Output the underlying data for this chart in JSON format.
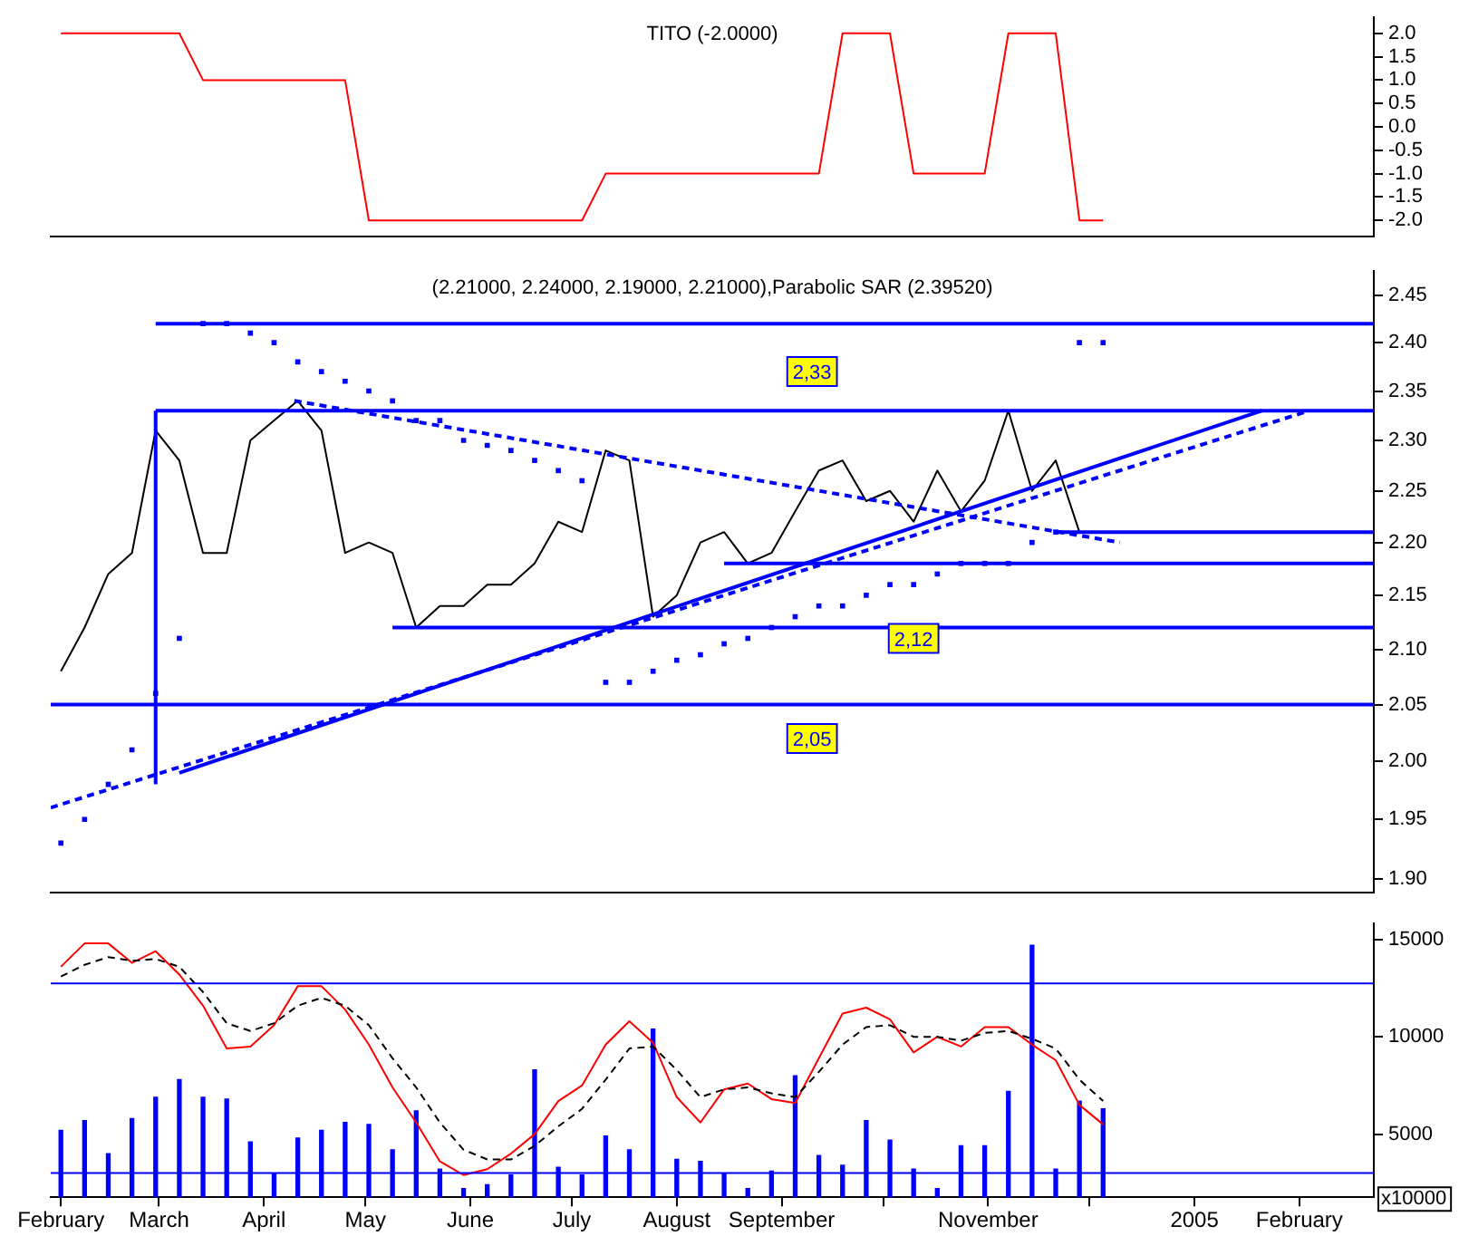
{
  "chart_data": [
    {
      "type": "line",
      "title": "TITO (-2.0000)",
      "x": [
        "2004-02-01",
        "2004-02-08",
        "2004-02-15",
        "2004-02-22",
        "2004-02-29",
        "2004-03-07",
        "2004-03-14",
        "2004-03-21",
        "2004-03-28",
        "2004-04-04",
        "2004-04-11",
        "2004-04-18",
        "2004-04-25",
        "2004-05-02",
        "2004-05-09",
        "2004-05-16",
        "2004-05-23",
        "2004-05-30",
        "2004-06-06",
        "2004-06-13",
        "2004-06-20",
        "2004-06-27",
        "2004-07-04",
        "2004-07-11",
        "2004-07-18",
        "2004-07-25",
        "2004-08-01",
        "2004-08-08",
        "2004-08-15",
        "2004-08-22",
        "2004-08-29",
        "2004-09-05",
        "2004-09-12",
        "2004-09-19",
        "2004-09-26",
        "2004-10-03",
        "2004-10-10",
        "2004-10-17",
        "2004-10-24",
        "2004-10-31",
        "2004-11-07",
        "2004-11-14",
        "2004-11-21",
        "2004-11-28",
        "2004-12-05"
      ],
      "series": [
        {
          "color": "#ff0000",
          "values": [
            2,
            2,
            2,
            2,
            2,
            2,
            1,
            1,
            1,
            1,
            1,
            1,
            1,
            -2,
            -2,
            -2,
            -2,
            -2,
            -2,
            -2,
            -2,
            -2,
            -2,
            -1,
            -1,
            -1,
            -1,
            -1,
            -1,
            -1,
            -1,
            -1,
            -1,
            2,
            2,
            2,
            -1,
            -1,
            -1,
            -1,
            2,
            2,
            2,
            -2,
            -2
          ]
        }
      ],
      "xlim": [
        "2004-01-29",
        "2005-02-23"
      ],
      "ylim": [
        -2.34,
        2.34
      ],
      "yticks": [
        {
          "value": 2,
          "label": "2.0"
        },
        {
          "value": 1.5,
          "label": "1.5"
        },
        {
          "value": 1,
          "label": "1.0"
        },
        {
          "value": 0.5,
          "label": "0.5"
        },
        {
          "value": 0,
          "label": "0.0"
        },
        {
          "value": -0.5,
          "label": "-0.5"
        },
        {
          "value": -1,
          "label": "-1.0"
        },
        {
          "value": -1.5,
          "label": "-1.5"
        },
        {
          "value": -2,
          "label": "-2.0"
        }
      ],
      "tick_labels": "y",
      "marker": "none"
    },
    {
      "type": "line",
      "title": "(2.21000, 2.24000, 2.19000, 2.21000),Parabolic SAR (2.39520)",
      "x": [
        "2004-02-01",
        "2004-02-08",
        "2004-02-15",
        "2004-02-22",
        "2004-02-29",
        "2004-03-07",
        "2004-03-14",
        "2004-03-21",
        "2004-03-28",
        "2004-04-04",
        "2004-04-11",
        "2004-04-18",
        "2004-04-25",
        "2004-05-02",
        "2004-05-09",
        "2004-05-16",
        "2004-05-23",
        "2004-05-30",
        "2004-06-06",
        "2004-06-13",
        "2004-06-20",
        "2004-06-27",
        "2004-07-04",
        "2004-07-11",
        "2004-07-18",
        "2004-07-25",
        "2004-08-01",
        "2004-08-08",
        "2004-08-15",
        "2004-08-22",
        "2004-08-29",
        "2004-09-05",
        "2004-09-12",
        "2004-09-19",
        "2004-09-26",
        "2004-10-03",
        "2004-10-10",
        "2004-10-17",
        "2004-10-24",
        "2004-10-31",
        "2004-11-07",
        "2004-11-14",
        "2004-11-21",
        "2004-11-28",
        "2004-12-05"
      ],
      "series": [
        {
          "color": "#000000",
          "values": [
            2.08,
            2.12,
            2.17,
            2.19,
            2.31,
            2.28,
            2.19,
            2.19,
            2.3,
            2.32,
            2.34,
            2.31,
            2.19,
            2.2,
            2.19,
            2.12,
            2.14,
            2.14,
            2.16,
            2.16,
            2.18,
            2.22,
            2.21,
            2.29,
            2.28,
            2.13,
            2.15,
            2.2,
            2.21,
            2.18,
            2.19,
            2.23,
            2.27,
            2.28,
            2.24,
            2.25,
            2.22,
            2.27,
            2.23,
            2.26,
            2.33,
            2.25,
            2.28,
            2.21,
            null
          ]
        },
        {
          "type": "scatter",
          "marker": "square",
          "color": "#0000ff",
          "values": [
            1.93,
            1.95,
            1.98,
            2.01,
            2.06,
            2.11,
            2.42,
            2.42,
            2.41,
            2.4,
            2.38,
            2.37,
            2.36,
            2.35,
            2.34,
            2.32,
            2.32,
            2.3,
            2.295,
            2.29,
            2.28,
            2.27,
            2.26,
            2.07,
            2.07,
            2.08,
            2.09,
            2.095,
            2.105,
            2.11,
            2.12,
            2.13,
            2.14,
            2.14,
            2.15,
            2.16,
            2.16,
            2.17,
            2.18,
            2.18,
            2.18,
            2.2,
            2.21,
            2.4,
            2.4
          ]
        },
        {
          "color": "#0000ff",
          "x": [
            "2004-02-29",
            "2005-02-23"
          ],
          "values": [
            2.42,
            2.42
          ]
        },
        {
          "color": "#0000ff",
          "x": [
            "2004-02-29",
            "2005-02-23"
          ],
          "values": [
            2.33,
            2.33
          ]
        },
        {
          "color": "#0000ff",
          "x": [
            "2004-01-29",
            "2005-02-23"
          ],
          "values": [
            2.05,
            2.05
          ]
        },
        {
          "color": "#0000ff",
          "x": [
            "2004-05-09",
            "2005-02-23"
          ],
          "values": [
            2.12,
            2.12
          ]
        },
        {
          "color": "#0000ff",
          "x": [
            "2004-08-15",
            "2005-02-23"
          ],
          "values": [
            2.18,
            2.18
          ]
        },
        {
          "color": "#0000ff",
          "x": [
            "2004-11-21",
            "2005-02-23"
          ],
          "values": [
            2.21,
            2.21
          ]
        },
        {
          "color": "#0000ff",
          "x": [
            "2004-02-29",
            "2004-02-29"
          ],
          "values": [
            1.98,
            2.33
          ]
        },
        {
          "color": "#0000ff",
          "x": [
            "2004-03-07",
            "2005-01-21"
          ],
          "values": [
            1.99,
            2.33
          ]
        },
        {
          "color": "#0000ff",
          "line_style": "dashed",
          "x": [
            "2004-01-29",
            "2005-02-04"
          ],
          "values": [
            1.96,
            2.33
          ]
        },
        {
          "color": "#0000ff",
          "line_style": "dashed",
          "x": [
            "2004-04-10",
            "2004-12-10"
          ],
          "values": [
            2.34,
            2.2
          ]
        }
      ],
      "annotations": [
        {
          "text": "2,33",
          "x": "2004-09-10",
          "y": 2.37
        },
        {
          "text": "2,12",
          "x": "2004-10-10",
          "y": 2.11
        },
        {
          "text": "2,05",
          "x": "2004-09-10",
          "y": 2.02
        }
      ],
      "xlim": [
        "2004-01-29",
        "2005-02-23"
      ],
      "ylim": [
        1.889,
        2.476
      ],
      "log": true,
      "yticks": [
        {
          "value": 1.9,
          "label": "1.90"
        },
        {
          "value": 1.95,
          "label": "1.95"
        },
        {
          "value": 2,
          "label": "2.00"
        },
        {
          "value": 2.05,
          "label": "2.05"
        },
        {
          "value": 2.1,
          "label": "2.10"
        },
        {
          "value": 2.15,
          "label": "2.15"
        },
        {
          "value": 2.2,
          "label": "2.20"
        },
        {
          "value": 2.25,
          "label": "2.25"
        },
        {
          "value": 2.3,
          "label": "2.30"
        },
        {
          "value": 2.35,
          "label": "2.35"
        },
        {
          "value": 2.4,
          "label": "2.40"
        },
        {
          "value": 2.45,
          "label": "2.45"
        }
      ],
      "tick_labels": "y",
      "marker": "none"
    },
    {
      "type": "bar",
      "x": [
        "2004-02-01",
        "2004-02-08",
        "2004-02-15",
        "2004-02-22",
        "2004-02-29",
        "2004-03-07",
        "2004-03-14",
        "2004-03-21",
        "2004-03-28",
        "2004-04-04",
        "2004-04-11",
        "2004-04-18",
        "2004-04-25",
        "2004-05-02",
        "2004-05-09",
        "2004-05-16",
        "2004-05-23",
        "2004-05-30",
        "2004-06-06",
        "2004-06-13",
        "2004-06-20",
        "2004-06-27",
        "2004-07-04",
        "2004-07-11",
        "2004-07-18",
        "2004-07-25",
        "2004-08-01",
        "2004-08-08",
        "2004-08-15",
        "2004-08-22",
        "2004-08-29",
        "2004-09-05",
        "2004-09-12",
        "2004-09-19",
        "2004-09-26",
        "2004-10-03",
        "2004-10-10",
        "2004-10-17",
        "2004-10-24",
        "2004-10-31",
        "2004-11-07",
        "2004-11-14",
        "2004-11-21",
        "2004-11-28",
        "2004-12-05"
      ],
      "series": [
        {
          "color": "#0000ff",
          "values": [
            5200,
            5700,
            4000,
            5800,
            6900,
            7800,
            6900,
            6800,
            4600,
            3000,
            4800,
            5200,
            5600,
            5500,
            4200,
            6200,
            3200,
            2200,
            2400,
            2900,
            8300,
            3300,
            2900,
            4900,
            4200,
            10400,
            3700,
            3600,
            3000,
            2200,
            3100,
            8000,
            3900,
            3400,
            5700,
            4700,
            3200,
            2200,
            4400,
            4400,
            7200,
            14700,
            3200,
            6700,
            6300
          ]
        },
        {
          "type": "line",
          "color": "#ff0000",
          "values": [
            13600,
            14800,
            14800,
            13800,
            14400,
            13200,
            11600,
            9400,
            9500,
            10600,
            12600,
            12600,
            11400,
            9600,
            7400,
            5600,
            3600,
            2900,
            3200,
            4000,
            5000,
            6700,
            7500,
            9600,
            10800,
            9700,
            6900,
            5600,
            7300,
            7600,
            6800,
            6600,
            8900,
            11200,
            11500,
            10900,
            9200,
            10000,
            9500,
            10500,
            10500,
            9600,
            8800,
            6500,
            5500
          ]
        },
        {
          "type": "line",
          "line_style": "dashed",
          "color": "#000000",
          "values": [
            13100,
            13700,
            14100,
            13900,
            14000,
            13600,
            12300,
            10700,
            10300,
            10700,
            11600,
            12000,
            11600,
            10600,
            8900,
            7400,
            5600,
            4200,
            3700,
            3700,
            4400,
            5400,
            6300,
            7800,
            9400,
            9500,
            8300,
            6900,
            7300,
            7400,
            7100,
            6900,
            8200,
            9600,
            10500,
            10600,
            10000,
            10000,
            9800,
            10200,
            10300,
            9900,
            9400,
            7800,
            6700
          ]
        }
      ],
      "ref_lines": [
        {
          "axis": "y",
          "value": 12750,
          "color": "#0000ff"
        },
        {
          "axis": "y",
          "value": 3000,
          "color": "#0000ff"
        }
      ],
      "annotations": [
        "x10000"
      ],
      "xlim": [
        "2004-01-29",
        "2005-02-23"
      ],
      "ylim": [
        1760,
        15820
      ],
      "xticks": [
        {
          "value": "2004-02-01",
          "label": "February"
        },
        {
          "value": "2004-03-01",
          "label": "March"
        },
        {
          "value": "2004-04-01",
          "label": "April"
        },
        {
          "value": "2004-05-01",
          "label": "May"
        },
        {
          "value": "2004-06-01",
          "label": "June"
        },
        {
          "value": "2004-07-01",
          "label": "July"
        },
        {
          "value": "2004-08-01",
          "label": "August"
        },
        {
          "value": "2004-09-01",
          "label": "September"
        },
        {
          "value": "2004-10-01",
          "label": null
        },
        {
          "value": "2004-11-01",
          "label": "November"
        },
        {
          "value": "2004-12-01",
          "label": null
        },
        {
          "value": "2005-01-01",
          "label": "2005"
        },
        {
          "value": "2005-02-01",
          "label": "February"
        }
      ],
      "yticks": [
        5000,
        10000,
        15000
      ],
      "marker": "none"
    }
  ]
}
